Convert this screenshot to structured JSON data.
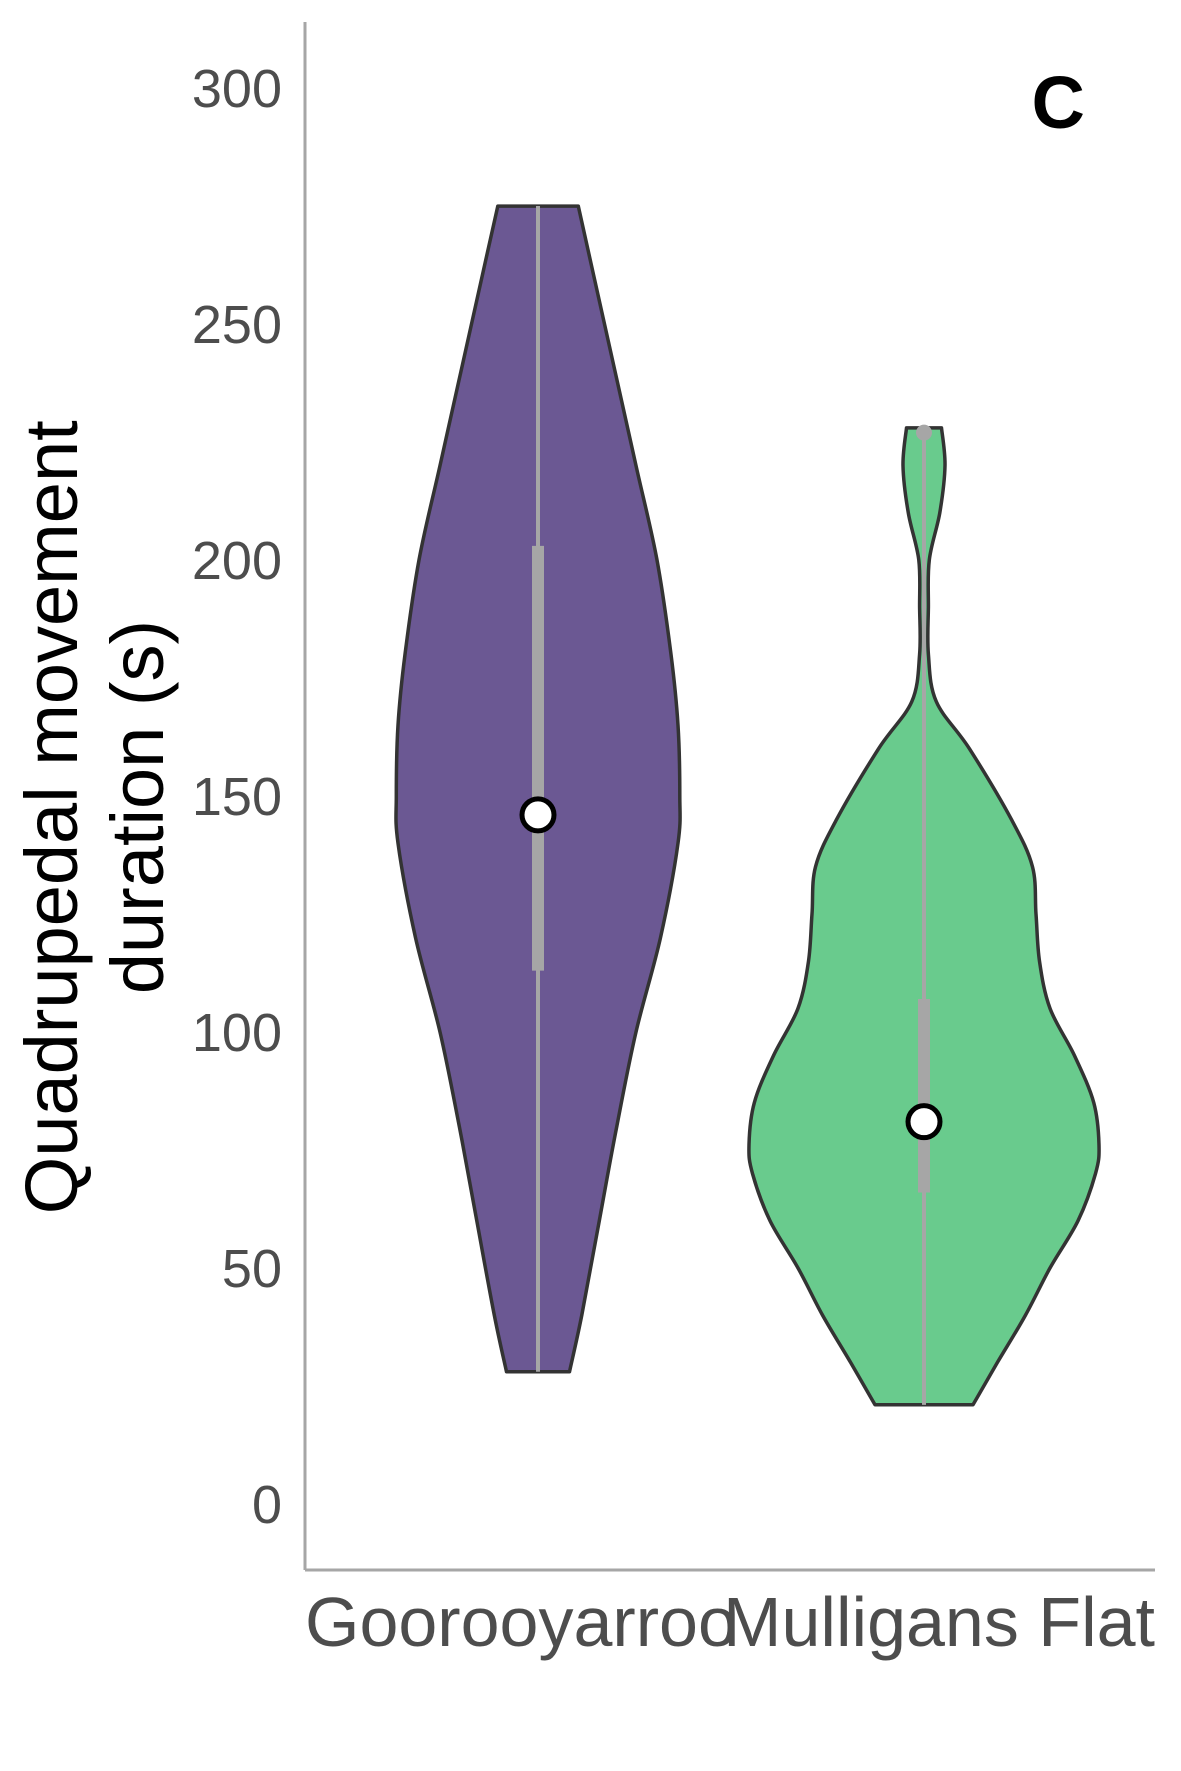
{
  "chart_data": {
    "type": "violin",
    "panel_label": "C",
    "ylabel_lines": [
      "Quadrupedal movement",
      "duration (s)"
    ],
    "xlabel": "",
    "ylim": [
      -14,
      314
    ],
    "yticks": [
      0,
      50,
      100,
      150,
      200,
      250,
      300
    ],
    "categories": [
      "Goorooyarroo",
      "Mulligans Flat"
    ],
    "grid": false,
    "legend": "none",
    "series": [
      {
        "category": "Goorooyarroo",
        "color": "#6b5893",
        "min": 28,
        "max": 275,
        "q1": 113,
        "q3": 203,
        "median": 146,
        "density_profile": [
          [
            28,
            0.18
          ],
          [
            40,
            0.25
          ],
          [
            60,
            0.35
          ],
          [
            80,
            0.45
          ],
          [
            100,
            0.56
          ],
          [
            120,
            0.7
          ],
          [
            140,
            0.8
          ],
          [
            150,
            0.81
          ],
          [
            165,
            0.8
          ],
          [
            180,
            0.76
          ],
          [
            200,
            0.68
          ],
          [
            220,
            0.56
          ],
          [
            240,
            0.44
          ],
          [
            260,
            0.32
          ],
          [
            275,
            0.23
          ]
        ]
      },
      {
        "category": "Mulligans Flat",
        "color": "#69cb8d",
        "min": 21,
        "max": 228,
        "q1": 66,
        "q3": 107,
        "median": 81,
        "outliers": [
          227
        ],
        "density_profile": [
          [
            21,
            0.28
          ],
          [
            30,
            0.42
          ],
          [
            40,
            0.58
          ],
          [
            50,
            0.72
          ],
          [
            60,
            0.88
          ],
          [
            70,
            0.98
          ],
          [
            76,
            1.0
          ],
          [
            85,
            0.97
          ],
          [
            95,
            0.86
          ],
          [
            105,
            0.72
          ],
          [
            115,
            0.66
          ],
          [
            125,
            0.64
          ],
          [
            135,
            0.62
          ],
          [
            145,
            0.5
          ],
          [
            160,
            0.26
          ],
          [
            170,
            0.07
          ],
          [
            180,
            0.0
          ],
          [
            190,
            0.0
          ],
          [
            200,
            0.03
          ],
          [
            210,
            0.09
          ],
          [
            220,
            0.12
          ],
          [
            228,
            0.1
          ]
        ]
      }
    ],
    "box_color": "#a6a6a6",
    "outline_color": "#333333"
  }
}
